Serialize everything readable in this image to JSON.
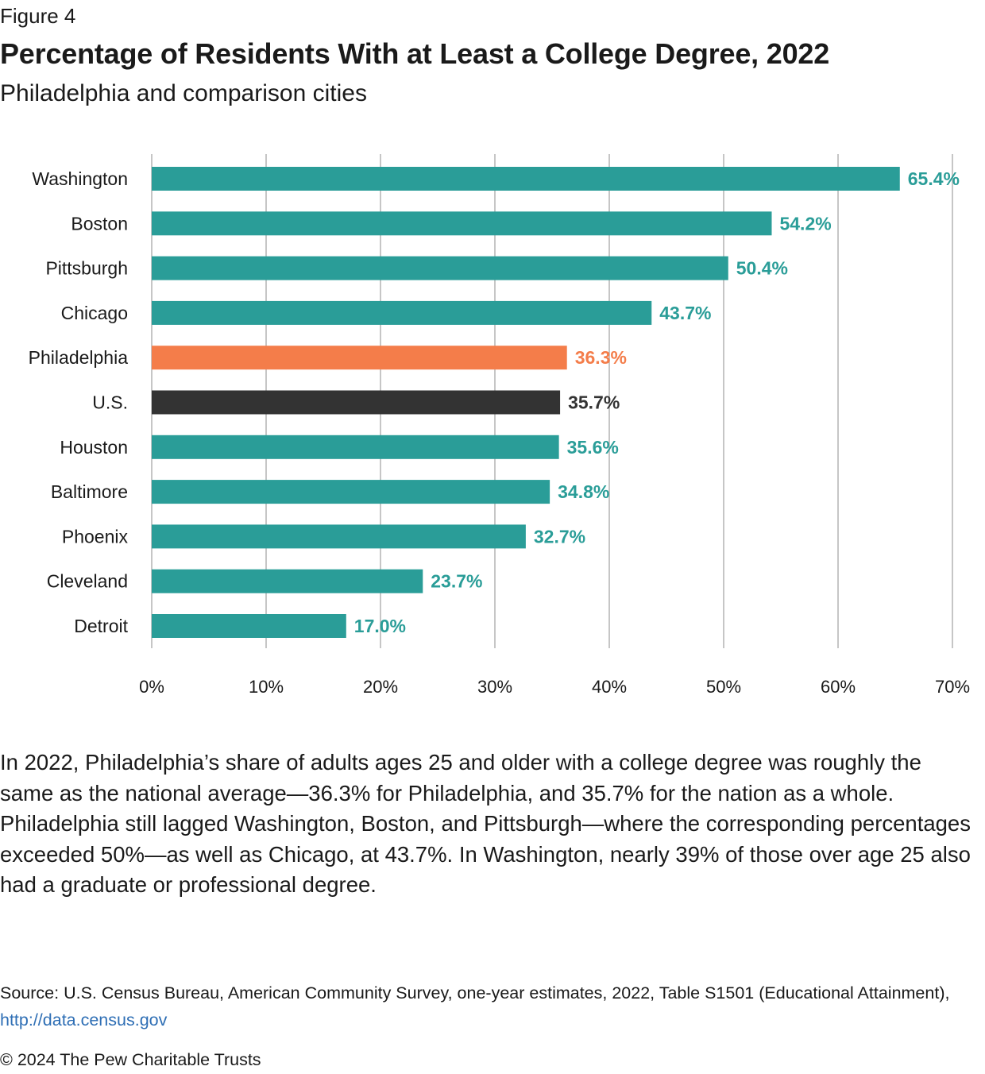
{
  "figure_label": "Figure 4",
  "title": "Percentage of Residents With at Least a College Degree, 2022",
  "subtitle": "Philadelphia and comparison cities",
  "colors": {
    "default": "#2a9d98",
    "highlight": "#f47d4a",
    "national": "#333333",
    "grid": "#b3b3b3",
    "axis_text": "#1a1a1a",
    "link": "#2f6fb5"
  },
  "chart_data": {
    "type": "bar",
    "orientation": "horizontal",
    "title": "Percentage of Residents With at Least a College Degree, 2022",
    "xlabel": "",
    "ylabel": "",
    "xlim": [
      0,
      70
    ],
    "x_ticks": [
      0,
      10,
      20,
      30,
      40,
      50,
      60,
      70
    ],
    "x_tick_labels": [
      "0%",
      "10%",
      "20%",
      "30%",
      "40%",
      "50%",
      "60%",
      "70%"
    ],
    "grid": true,
    "categories": [
      "Washington",
      "Boston",
      "Pittsburgh",
      "Chicago",
      "Philadelphia",
      "U.S.",
      "Houston",
      "Baltimore",
      "Phoenix",
      "Cleveland",
      "Detroit"
    ],
    "values": [
      65.4,
      54.2,
      50.4,
      43.7,
      36.3,
      35.7,
      35.6,
      34.8,
      32.7,
      23.7,
      17.0
    ],
    "value_labels": [
      "65.4%",
      "54.2%",
      "50.4%",
      "43.7%",
      "36.3%",
      "35.7%",
      "35.6%",
      "34.8%",
      "32.7%",
      "23.7%",
      "17.0%"
    ],
    "bar_colors": [
      "default",
      "default",
      "default",
      "default",
      "highlight",
      "national",
      "default",
      "default",
      "default",
      "default",
      "default"
    ]
  },
  "caption": "In 2022, Philadelphia’s share of adults ages 25 and older with a college degree was roughly the same as the national average—36.3% for Philadelphia, and 35.7% for the nation as a whole. Philadelphia still lagged Washington, Boston, and Pittsburgh—where the corresponding percentages exceeded 50%—as well as Chicago, at 43.7%. In Washington, nearly 39% of those over age 25 also had a graduate or professional degree.",
  "source": {
    "text": "Source: U.S. Census Bureau, American Community Survey, one-year estimates, 2022, Table S1501 (Educational Attainment),",
    "link_text": "http://data.census.gov"
  },
  "copyright": "© 2024 The Pew Charitable Trusts"
}
